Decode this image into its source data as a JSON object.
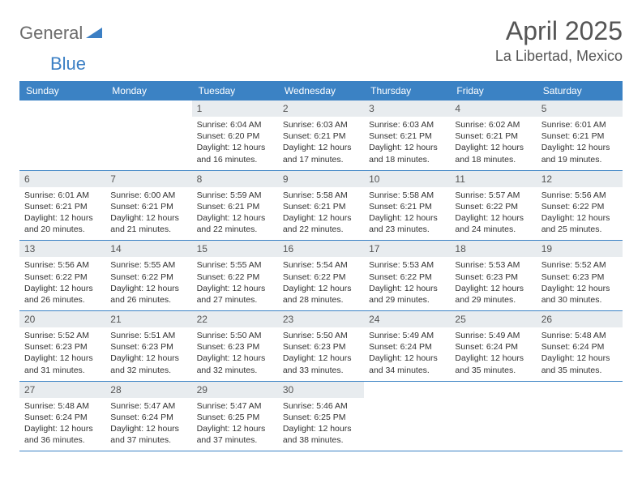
{
  "brand": {
    "word1": "General",
    "word2": "Blue"
  },
  "title": "April 2025",
  "location": "La Libertad, Mexico",
  "colors": {
    "header_bg": "#3b82c4",
    "header_text": "#ffffff",
    "daynum_bg": "#e8ecef",
    "border": "#3b82c4",
    "body_text": "#333333",
    "title_text": "#555555"
  },
  "dayNames": [
    "Sunday",
    "Monday",
    "Tuesday",
    "Wednesday",
    "Thursday",
    "Friday",
    "Saturday"
  ],
  "weeks": [
    [
      {
        "n": "",
        "sr": "",
        "ss": "",
        "dl": ""
      },
      {
        "n": "",
        "sr": "",
        "ss": "",
        "dl": ""
      },
      {
        "n": "1",
        "sr": "Sunrise: 6:04 AM",
        "ss": "Sunset: 6:20 PM",
        "dl": "Daylight: 12 hours and 16 minutes."
      },
      {
        "n": "2",
        "sr": "Sunrise: 6:03 AM",
        "ss": "Sunset: 6:21 PM",
        "dl": "Daylight: 12 hours and 17 minutes."
      },
      {
        "n": "3",
        "sr": "Sunrise: 6:03 AM",
        "ss": "Sunset: 6:21 PM",
        "dl": "Daylight: 12 hours and 18 minutes."
      },
      {
        "n": "4",
        "sr": "Sunrise: 6:02 AM",
        "ss": "Sunset: 6:21 PM",
        "dl": "Daylight: 12 hours and 18 minutes."
      },
      {
        "n": "5",
        "sr": "Sunrise: 6:01 AM",
        "ss": "Sunset: 6:21 PM",
        "dl": "Daylight: 12 hours and 19 minutes."
      }
    ],
    [
      {
        "n": "6",
        "sr": "Sunrise: 6:01 AM",
        "ss": "Sunset: 6:21 PM",
        "dl": "Daylight: 12 hours and 20 minutes."
      },
      {
        "n": "7",
        "sr": "Sunrise: 6:00 AM",
        "ss": "Sunset: 6:21 PM",
        "dl": "Daylight: 12 hours and 21 minutes."
      },
      {
        "n": "8",
        "sr": "Sunrise: 5:59 AM",
        "ss": "Sunset: 6:21 PM",
        "dl": "Daylight: 12 hours and 22 minutes."
      },
      {
        "n": "9",
        "sr": "Sunrise: 5:58 AM",
        "ss": "Sunset: 6:21 PM",
        "dl": "Daylight: 12 hours and 22 minutes."
      },
      {
        "n": "10",
        "sr": "Sunrise: 5:58 AM",
        "ss": "Sunset: 6:21 PM",
        "dl": "Daylight: 12 hours and 23 minutes."
      },
      {
        "n": "11",
        "sr": "Sunrise: 5:57 AM",
        "ss": "Sunset: 6:22 PM",
        "dl": "Daylight: 12 hours and 24 minutes."
      },
      {
        "n": "12",
        "sr": "Sunrise: 5:56 AM",
        "ss": "Sunset: 6:22 PM",
        "dl": "Daylight: 12 hours and 25 minutes."
      }
    ],
    [
      {
        "n": "13",
        "sr": "Sunrise: 5:56 AM",
        "ss": "Sunset: 6:22 PM",
        "dl": "Daylight: 12 hours and 26 minutes."
      },
      {
        "n": "14",
        "sr": "Sunrise: 5:55 AM",
        "ss": "Sunset: 6:22 PM",
        "dl": "Daylight: 12 hours and 26 minutes."
      },
      {
        "n": "15",
        "sr": "Sunrise: 5:55 AM",
        "ss": "Sunset: 6:22 PM",
        "dl": "Daylight: 12 hours and 27 minutes."
      },
      {
        "n": "16",
        "sr": "Sunrise: 5:54 AM",
        "ss": "Sunset: 6:22 PM",
        "dl": "Daylight: 12 hours and 28 minutes."
      },
      {
        "n": "17",
        "sr": "Sunrise: 5:53 AM",
        "ss": "Sunset: 6:22 PM",
        "dl": "Daylight: 12 hours and 29 minutes."
      },
      {
        "n": "18",
        "sr": "Sunrise: 5:53 AM",
        "ss": "Sunset: 6:23 PM",
        "dl": "Daylight: 12 hours and 29 minutes."
      },
      {
        "n": "19",
        "sr": "Sunrise: 5:52 AM",
        "ss": "Sunset: 6:23 PM",
        "dl": "Daylight: 12 hours and 30 minutes."
      }
    ],
    [
      {
        "n": "20",
        "sr": "Sunrise: 5:52 AM",
        "ss": "Sunset: 6:23 PM",
        "dl": "Daylight: 12 hours and 31 minutes."
      },
      {
        "n": "21",
        "sr": "Sunrise: 5:51 AM",
        "ss": "Sunset: 6:23 PM",
        "dl": "Daylight: 12 hours and 32 minutes."
      },
      {
        "n": "22",
        "sr": "Sunrise: 5:50 AM",
        "ss": "Sunset: 6:23 PM",
        "dl": "Daylight: 12 hours and 32 minutes."
      },
      {
        "n": "23",
        "sr": "Sunrise: 5:50 AM",
        "ss": "Sunset: 6:23 PM",
        "dl": "Daylight: 12 hours and 33 minutes."
      },
      {
        "n": "24",
        "sr": "Sunrise: 5:49 AM",
        "ss": "Sunset: 6:24 PM",
        "dl": "Daylight: 12 hours and 34 minutes."
      },
      {
        "n": "25",
        "sr": "Sunrise: 5:49 AM",
        "ss": "Sunset: 6:24 PM",
        "dl": "Daylight: 12 hours and 35 minutes."
      },
      {
        "n": "26",
        "sr": "Sunrise: 5:48 AM",
        "ss": "Sunset: 6:24 PM",
        "dl": "Daylight: 12 hours and 35 minutes."
      }
    ],
    [
      {
        "n": "27",
        "sr": "Sunrise: 5:48 AM",
        "ss": "Sunset: 6:24 PM",
        "dl": "Daylight: 12 hours and 36 minutes."
      },
      {
        "n": "28",
        "sr": "Sunrise: 5:47 AM",
        "ss": "Sunset: 6:24 PM",
        "dl": "Daylight: 12 hours and 37 minutes."
      },
      {
        "n": "29",
        "sr": "Sunrise: 5:47 AM",
        "ss": "Sunset: 6:25 PM",
        "dl": "Daylight: 12 hours and 37 minutes."
      },
      {
        "n": "30",
        "sr": "Sunrise: 5:46 AM",
        "ss": "Sunset: 6:25 PM",
        "dl": "Daylight: 12 hours and 38 minutes."
      },
      {
        "n": "",
        "sr": "",
        "ss": "",
        "dl": ""
      },
      {
        "n": "",
        "sr": "",
        "ss": "",
        "dl": ""
      },
      {
        "n": "",
        "sr": "",
        "ss": "",
        "dl": ""
      }
    ]
  ]
}
